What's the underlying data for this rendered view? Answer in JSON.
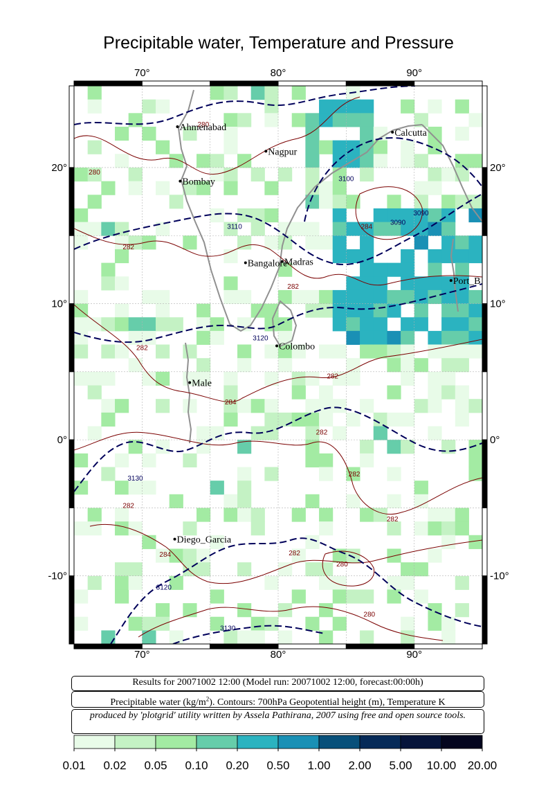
{
  "title": "Precipitable water, Temperature and Pressure",
  "map": {
    "lon_range": [
      65,
      95
    ],
    "lat_range": [
      -15,
      26
    ],
    "x_ticks": [
      {
        "v": 70,
        "label": "70°"
      },
      {
        "v": 80,
        "label": "80°"
      },
      {
        "v": 90,
        "label": "90°"
      }
    ],
    "y_ticks": [
      {
        "v": 20,
        "label": "20°"
      },
      {
        "v": 10,
        "label": "10°"
      },
      {
        "v": 0,
        "label": "0°"
      },
      {
        "v": -10,
        "label": "-10°"
      }
    ],
    "cities": [
      {
        "name": "Ahmenabad",
        "lon": 72.6,
        "lat": 23.0
      },
      {
        "name": "Calcutta",
        "lon": 88.4,
        "lat": 22.6
      },
      {
        "name": "Nagpur",
        "lon": 79.1,
        "lat": 21.2
      },
      {
        "name": "Bombay",
        "lon": 72.8,
        "lat": 19.0
      },
      {
        "name": "Bangalore",
        "lon": 77.6,
        "lat": 13.0
      },
      {
        "name": "Madras",
        "lon": 80.3,
        "lat": 13.1
      },
      {
        "name": "Port_B",
        "lon": 92.7,
        "lat": 11.7
      },
      {
        "name": "Colombo",
        "lon": 79.9,
        "lat": 6.9
      },
      {
        "name": "Male",
        "lon": 73.5,
        "lat": 4.2
      },
      {
        "name": "Diego_Garcia",
        "lon": 72.4,
        "lat": -7.3
      }
    ],
    "contour_labels": [
      {
        "text": "280",
        "lon": 74.5,
        "lat": 23.0,
        "color": "#7a0000"
      },
      {
        "text": "280",
        "lon": 66.5,
        "lat": 19.5,
        "color": "#7a0000"
      },
      {
        "text": "3110",
        "lon": 76.8,
        "lat": 15.5,
        "color": "#00005a"
      },
      {
        "text": "282",
        "lon": 69.0,
        "lat": 14.0,
        "color": "#7a0000"
      },
      {
        "text": "3100",
        "lon": 85.0,
        "lat": 19.0,
        "color": "#00005a"
      },
      {
        "text": "284",
        "lon": 86.5,
        "lat": 15.5,
        "color": "#7a0000"
      },
      {
        "text": "3090",
        "lon": 88.8,
        "lat": 15.8,
        "color": "#00005a"
      },
      {
        "text": "3090",
        "lon": 90.5,
        "lat": 16.5,
        "color": "#00005a"
      },
      {
        "text": "282",
        "lon": 81.1,
        "lat": 11.1,
        "color": "#7a0000"
      },
      {
        "text": "3120",
        "lon": 78.7,
        "lat": 7.3,
        "color": "#00005a"
      },
      {
        "text": "282",
        "lon": 70.0,
        "lat": 6.6,
        "color": "#7a0000"
      },
      {
        "text": "282",
        "lon": 84.0,
        "lat": 4.5,
        "color": "#7a0000"
      },
      {
        "text": "284",
        "lon": 76.5,
        "lat": 2.6,
        "color": "#7a0000"
      },
      {
        "text": "282",
        "lon": 83.2,
        "lat": 0.4,
        "color": "#7a0000"
      },
      {
        "text": "282",
        "lon": 85.6,
        "lat": -2.7,
        "color": "#7a0000"
      },
      {
        "text": "3130",
        "lon": 69.5,
        "lat": -3.0,
        "color": "#00005a"
      },
      {
        "text": "282",
        "lon": 69.0,
        "lat": -5.0,
        "color": "#7a0000"
      },
      {
        "text": "282",
        "lon": 88.4,
        "lat": -6.0,
        "color": "#7a0000"
      },
      {
        "text": "284",
        "lon": 71.7,
        "lat": -8.6,
        "color": "#7a0000"
      },
      {
        "text": "282",
        "lon": 81.2,
        "lat": -8.5,
        "color": "#7a0000"
      },
      {
        "text": "280",
        "lon": 84.7,
        "lat": -9.3,
        "color": "#7a0000"
      },
      {
        "text": "3120",
        "lon": 71.6,
        "lat": -11.0,
        "color": "#00005a"
      },
      {
        "text": "3130",
        "lon": 76.3,
        "lat": -14.0,
        "color": "#00005a"
      },
      {
        "text": "280",
        "lon": 86.7,
        "lat": -13.0,
        "color": "#7a0000"
      }
    ]
  },
  "info": {
    "results": "Results for 20071002 12:00 (Model run: 20071002 12:00, forecast:00:00h)",
    "legend_desc_1": "Precipitable water (kg/m",
    "legend_desc_sup": "2",
    "legend_desc_2": ").  Contours: 700hPa Geopotential height (m), Temperature K",
    "credit": "produced by 'plotgrid' utility written by Assela Pathirana, 2007 using free and open source tools."
  },
  "colorbar": {
    "colors": [
      "#e8fbe8",
      "#c4f2c4",
      "#a3eba3",
      "#66cdaa",
      "#2bb3c0",
      "#1a90b5",
      "#08507a",
      "#062a58",
      "#06143a",
      "#03051e"
    ],
    "labels": [
      "0.01",
      "0.02",
      "0.05",
      "0.10",
      "0.20",
      "0.50",
      "1.00",
      "2.00",
      "5.00",
      "10.00",
      "20.00"
    ]
  }
}
